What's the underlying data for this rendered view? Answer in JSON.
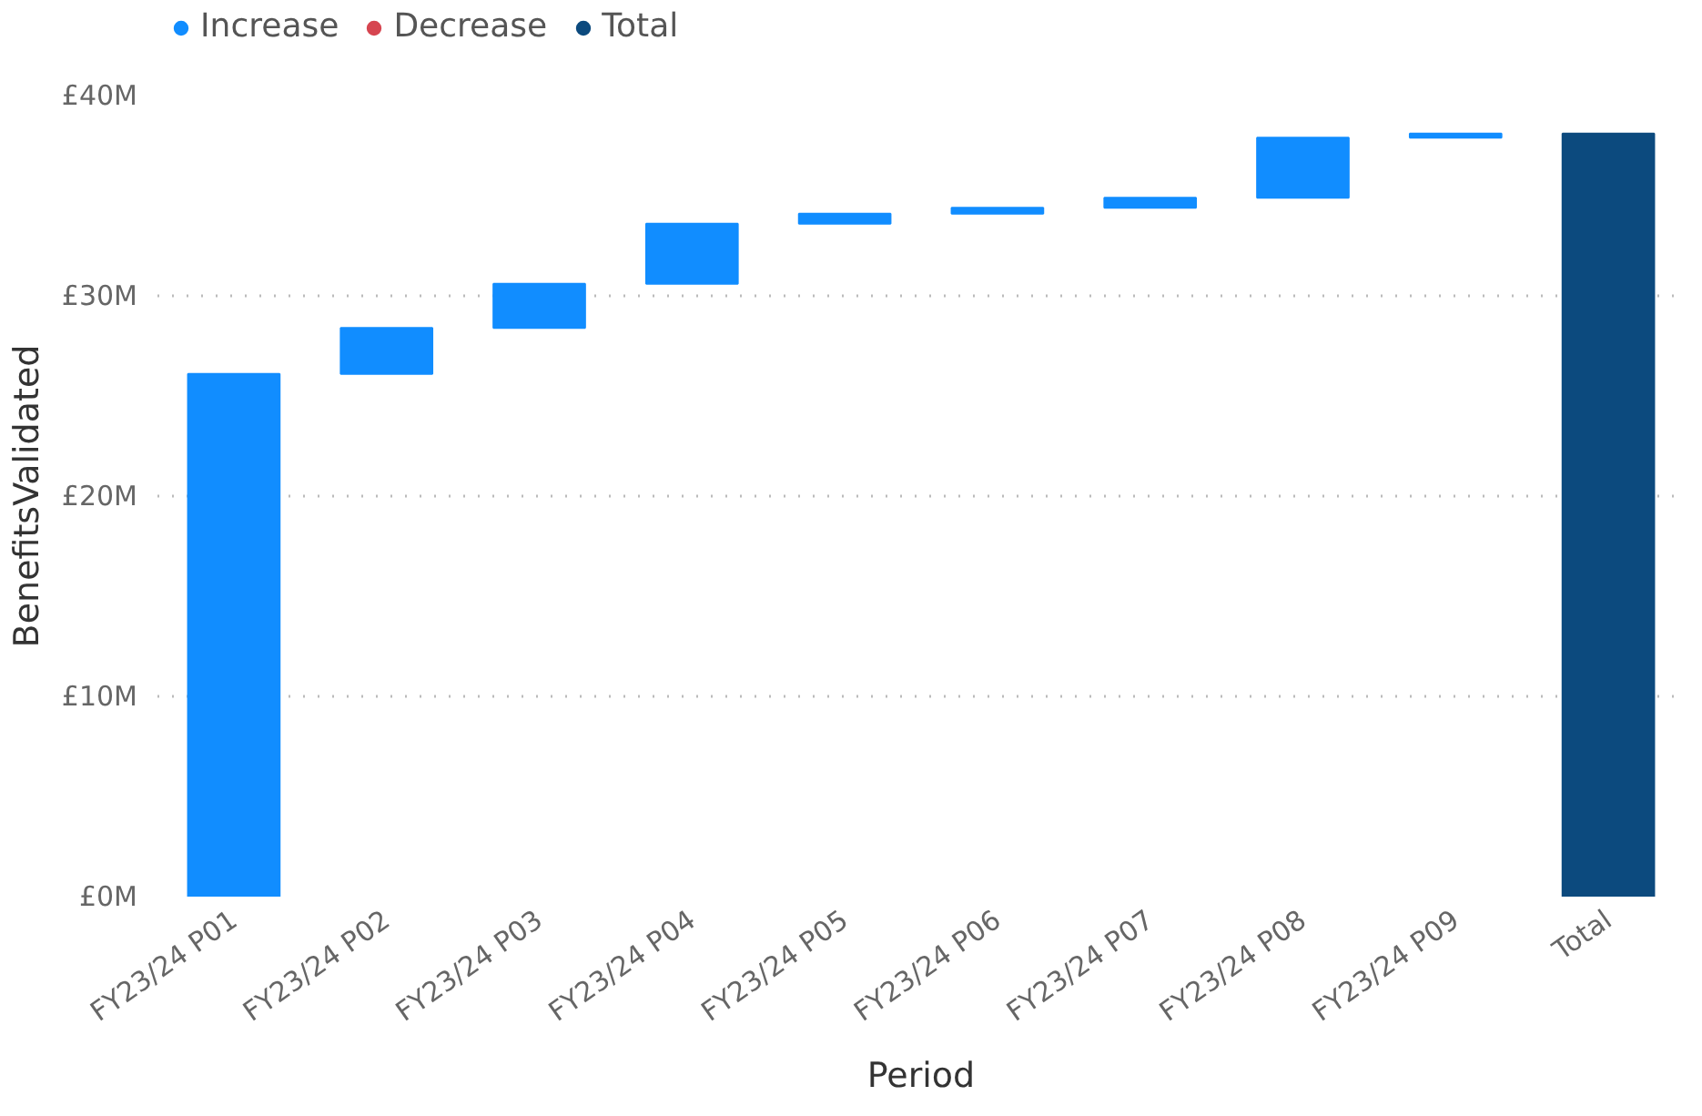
{
  "chart_data": {
    "type": "bar",
    "xlabel": "Period",
    "ylabel": "BenefitsValidated",
    "categories": [
      "FY23/24 P01",
      "FY23/24 P02",
      "FY23/24 P03",
      "FY23/24 P04",
      "FY23/24 P05",
      "FY23/24 P06",
      "FY23/24 P07",
      "FY23/24 P08",
      "FY23/24 P09",
      "Total"
    ],
    "series": [
      {
        "name": "Increase",
        "color": "#118dff",
        "values": [
          26.1,
          2.3,
          2.2,
          3.0,
          0.5,
          0.3,
          0.5,
          3.0,
          0.2,
          null
        ],
        "base": [
          0,
          26.1,
          28.4,
          30.6,
          33.6,
          34.1,
          34.4,
          34.9,
          37.9,
          null
        ]
      },
      {
        "name": "Decrease",
        "color": "#d64550",
        "values": [
          null,
          null,
          null,
          null,
          null,
          null,
          null,
          null,
          null,
          null
        ]
      },
      {
        "name": "Total",
        "color": "#0c4a7e",
        "values": [
          null,
          null,
          null,
          null,
          null,
          null,
          null,
          null,
          null,
          38.1
        ],
        "base": [
          null,
          null,
          null,
          null,
          null,
          null,
          null,
          null,
          null,
          0
        ]
      }
    ],
    "ylim": [
      0,
      40
    ],
    "yticks": [
      {
        "value": 0,
        "label": "£0M"
      },
      {
        "value": 10,
        "label": "£10M"
      },
      {
        "value": 20,
        "label": "£20M"
      },
      {
        "value": 30,
        "label": "£30M"
      },
      {
        "value": 40,
        "label": "£40M"
      }
    ],
    "grid": "y",
    "legend": "top left"
  }
}
